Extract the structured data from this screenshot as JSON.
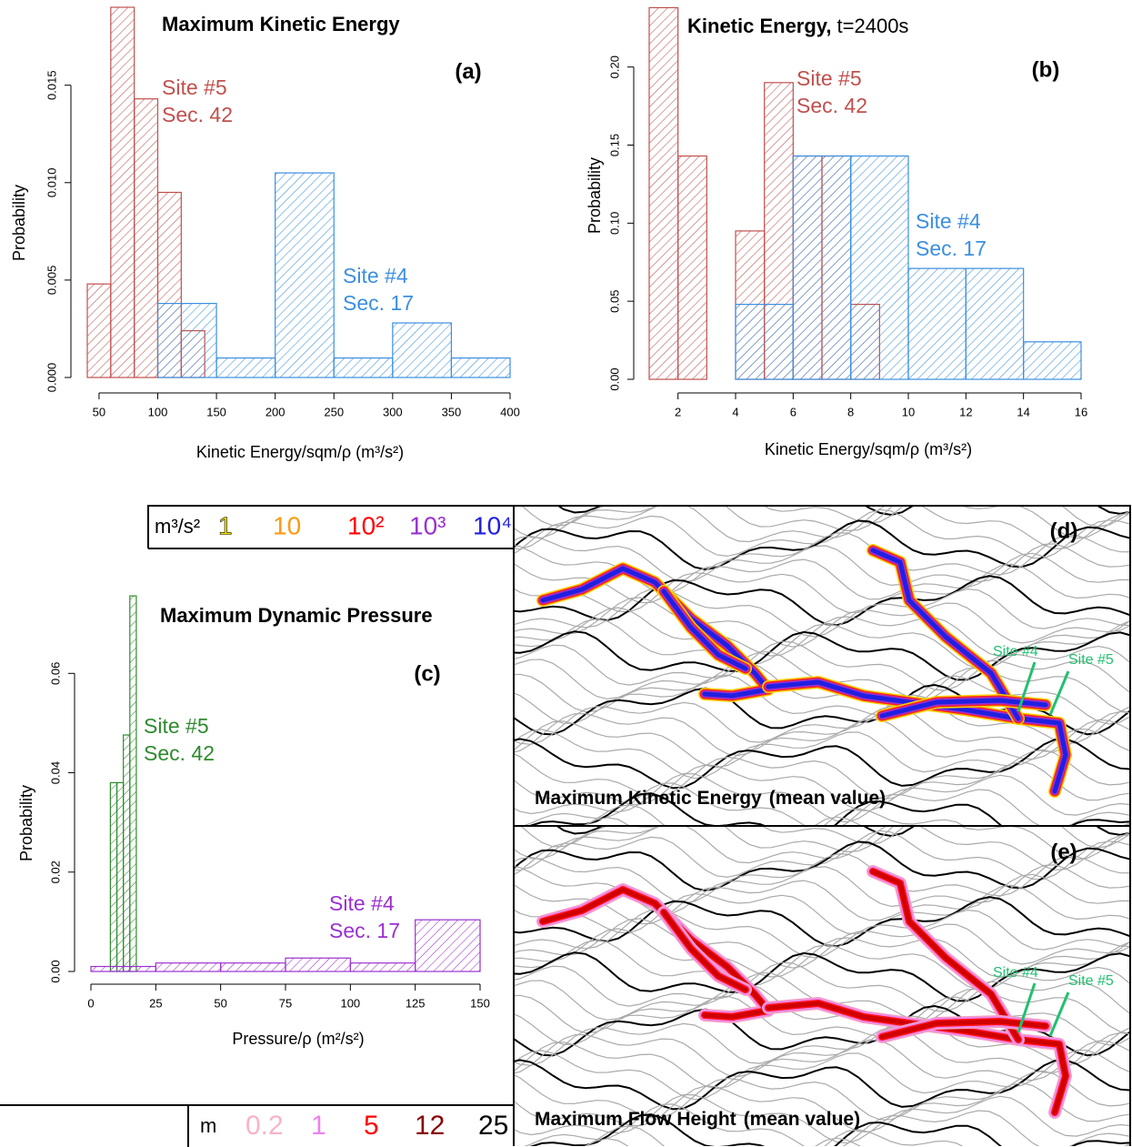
{
  "chart_data": [
    {
      "type": "histogram",
      "title": "Maximum Kinetic Energy",
      "panel": "(a)",
      "xlabel": "Kinetic Energy/sqm/ρ (m³/s²)",
      "ylabel": "Probability",
      "xlim": [
        40,
        400
      ],
      "xticks": [
        50,
        100,
        150,
        200,
        250,
        300,
        350,
        400
      ],
      "ylim": [
        0,
        0.019
      ],
      "yticks": [
        {
          "value": 0,
          "label": "0.000"
        },
        {
          "value": 0.005,
          "label": "0.005"
        },
        {
          "value": 0.01,
          "label": "0.010"
        },
        {
          "value": 0.015,
          "label": "0.015"
        }
      ],
      "series": [
        {
          "name": "Site #5",
          "section": "Sec. 42",
          "color": "#c0504d",
          "bins": [
            40,
            60,
            80,
            100,
            120,
            140
          ],
          "values": [
            0.0048,
            0.019,
            0.0143,
            0.0095,
            0.0024
          ]
        },
        {
          "name": "Site #4",
          "section": "Sec. 17",
          "color": "#3b8fe0",
          "bins": [
            100,
            150,
            200,
            250,
            300,
            350,
            400
          ],
          "values": [
            0.0038,
            0.001,
            0.0105,
            0.001,
            0.0028,
            0.001
          ]
        }
      ]
    },
    {
      "type": "histogram",
      "title": "Kinetic Energy,",
      "subtitle": "t=2400s",
      "panel": "(b)",
      "xlabel": "Kinetic Energy/sqm/ρ (m³/s²)",
      "ylabel": "Probability",
      "xlim": [
        1,
        16
      ],
      "xticks": [
        2,
        4,
        6,
        8,
        10,
        12,
        14,
        16
      ],
      "ylim": [
        0,
        0.24
      ],
      "yticks": [
        {
          "value": 0,
          "label": "0.00"
        },
        {
          "value": 0.05,
          "label": "0.05"
        },
        {
          "value": 0.1,
          "label": "0.10"
        },
        {
          "value": 0.15,
          "label": "0.15"
        },
        {
          "value": 0.2,
          "label": "0.20"
        }
      ],
      "series": [
        {
          "name": "Site #5",
          "section": "Sec. 42",
          "color": "#c0504d",
          "bins": [
            1,
            2,
            3,
            4,
            5,
            6,
            7,
            8,
            9
          ],
          "values": [
            0.238,
            0.143,
            0,
            0.095,
            0.19,
            0.143,
            0.143,
            0.048
          ]
        },
        {
          "name": "Site #4",
          "section": "Sec. 17",
          "color": "#3b8fe0",
          "bins": [
            4,
            6,
            8,
            10,
            12,
            14,
            16
          ],
          "values": [
            0.048,
            0.143,
            0.143,
            0.071,
            0.071,
            0.024
          ]
        }
      ]
    },
    {
      "type": "histogram",
      "title": "Maximum Dynamic Pressure",
      "panel": "(c)",
      "xlabel": "Pressure/ρ (m²/s²)",
      "ylabel": "Probability",
      "xlim": [
        0,
        150
      ],
      "xticks": [
        0,
        25,
        50,
        75,
        100,
        125,
        150
      ],
      "ylim": [
        0,
        0.078
      ],
      "yticks": [
        {
          "value": 0,
          "label": "0.00"
        },
        {
          "value": 0.02,
          "label": "0.02"
        },
        {
          "value": 0.04,
          "label": "0.04"
        },
        {
          "value": 0.06,
          "label": "0.06"
        }
      ],
      "series": [
        {
          "name": "Site #5",
          "section": "Sec. 42",
          "color": "#2e8b2e",
          "bins": [
            7.5,
            10,
            12.5,
            15,
            17.5
          ],
          "values": [
            0.038,
            0.038,
            0.0476,
            0.0756
          ]
        },
        {
          "name": "Site #4",
          "section": "Sec. 17",
          "color": "#9b30d0",
          "bins": [
            0,
            25,
            50,
            75,
            100,
            125,
            150
          ],
          "values": [
            0.001,
            0.0017,
            0.0017,
            0.0027,
            0.0017,
            0.0104
          ]
        }
      ]
    }
  ],
  "maps": [
    {
      "panel": "(d)",
      "title": "Maximum Kinetic Energy",
      "note": "(mean value)",
      "sites": [
        "Site #4",
        "Site #5"
      ],
      "flow_colors": [
        "#f5d000",
        "#ff2020",
        "#9b30d0",
        "#2020e0"
      ]
    },
    {
      "panel": "(e)",
      "title": "Maximum Flow Height",
      "note": "(mean value)",
      "sites": [
        "Site #4",
        "Site #5"
      ],
      "flow_colors": [
        "#f4a0c8",
        "#ee82ee",
        "#ff1010",
        "#d00000"
      ]
    }
  ],
  "legends": [
    {
      "unit": "m³/s²",
      "items": [
        {
          "label": "1",
          "color": "#f5e200"
        },
        {
          "label": "10",
          "color": "#ff9a10"
        },
        {
          "label": "10²",
          "color": "#ff0000"
        },
        {
          "label": "10³",
          "color": "#9b30d0"
        },
        {
          "label": "10⁴",
          "color": "#1f1fe0"
        }
      ]
    },
    {
      "unit": "m",
      "items": [
        {
          "label": "0.2",
          "color": "#f8b4c8"
        },
        {
          "label": "1",
          "color": "#ee82ee"
        },
        {
          "label": "5",
          "color": "#ff0000"
        },
        {
          "label": "12",
          "color": "#8b0000"
        },
        {
          "label": "25",
          "color": "#000000"
        }
      ]
    }
  ]
}
